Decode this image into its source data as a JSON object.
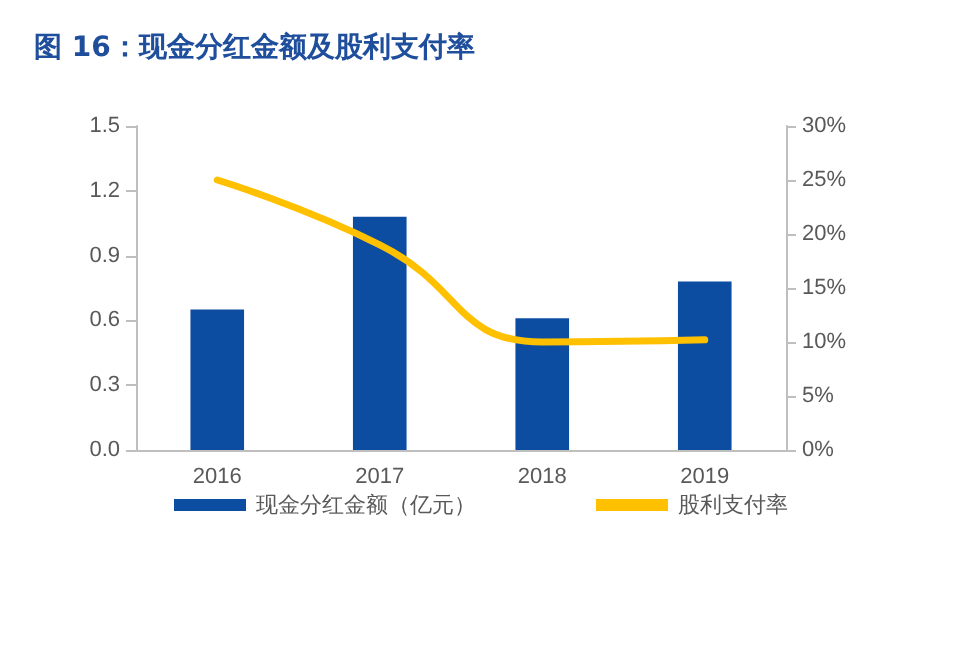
{
  "chart_data": {
    "type": "bar",
    "title": "图 16：现金分红金额及股利支付率",
    "categories": [
      "2016",
      "2017",
      "2018",
      "2019"
    ],
    "series": [
      {
        "name": "现金分红金额（亿元）",
        "color": "#0c4da2",
        "values": [
          0.65,
          1.08,
          0.61,
          0.78
        ]
      },
      {
        "name": "股利支付率",
        "type": "line",
        "axis": "y2",
        "color": "#ffc000",
        "values": [
          25,
          19,
          10,
          10.2
        ]
      }
    ],
    "ylim": [
      0,
      1.5
    ],
    "yticks": [
      {
        "value": 0,
        "label": "0.0"
      },
      {
        "value": 0.3,
        "label": "0.3"
      },
      {
        "value": 0.6,
        "label": "0.6"
      },
      {
        "value": 0.9,
        "label": "0.9"
      },
      {
        "value": 1.2,
        "label": "1.2"
      },
      {
        "value": 1.5,
        "label": "1.5"
      }
    ],
    "y2lim": [
      0,
      30
    ],
    "y2ticks": [
      {
        "value": 0,
        "label": "0%"
      },
      {
        "value": 5,
        "label": "5%"
      },
      {
        "value": 10,
        "label": "10%"
      },
      {
        "value": 15,
        "label": "15%"
      },
      {
        "value": 20,
        "label": "20%"
      },
      {
        "value": 25,
        "label": "25%"
      },
      {
        "value": 30,
        "label": "30%"
      }
    ],
    "grid": false,
    "legend": "bottom",
    "marker": "none"
  }
}
